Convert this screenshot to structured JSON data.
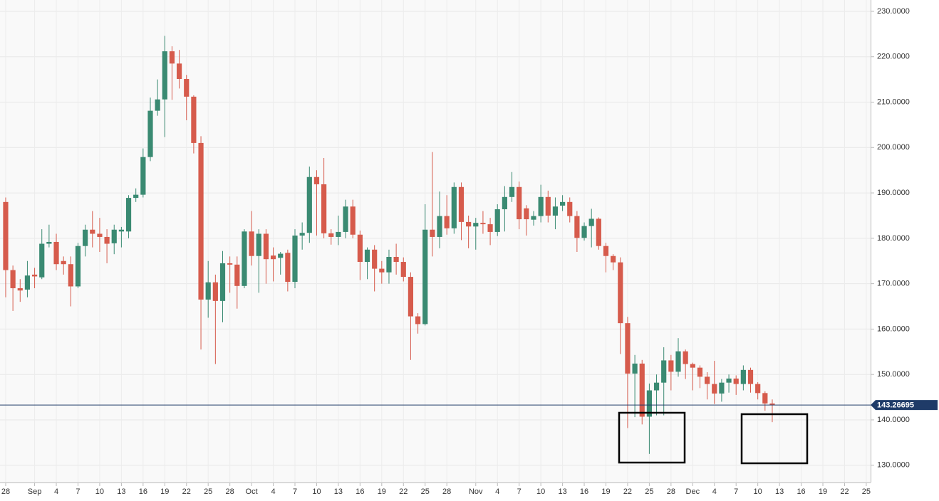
{
  "chart_data": {
    "type": "candlestick",
    "categories": [
      "28",
      null,
      null,
      null,
      "Sep",
      null,
      null,
      "4",
      null,
      null,
      "7",
      null,
      null,
      "10",
      null,
      null,
      "13",
      null,
      null,
      "16",
      null,
      null,
      "19",
      null,
      null,
      "22",
      null,
      null,
      "25",
      null,
      null,
      "28",
      null,
      null,
      "Oct",
      null,
      null,
      "4",
      null,
      null,
      "7",
      null,
      null,
      "10",
      null,
      null,
      "13",
      null,
      null,
      "16",
      null,
      null,
      "19",
      null,
      null,
      "22",
      null,
      null,
      "25",
      null,
      null,
      "28",
      null,
      null,
      null,
      "Nov",
      null,
      null,
      "4",
      null,
      null,
      "7",
      null,
      null,
      "10",
      null,
      null,
      "13",
      null,
      null,
      "16",
      null,
      null,
      "19",
      null,
      null,
      "22",
      null,
      null,
      "25",
      null,
      null,
      "28",
      null,
      null,
      "Dec",
      null,
      null,
      "4",
      null,
      null,
      "7",
      null,
      null,
      "10",
      null,
      null,
      "13",
      null,
      null,
      "16",
      null,
      null,
      "19",
      null,
      null,
      "22",
      null,
      null,
      "25"
    ],
    "open": [
      188,
      173,
      169,
      168.7,
      172,
      171.4,
      178.8,
      179.2,
      175,
      174.3,
      169.4,
      178.3,
      181.9,
      181,
      180.3,
      178.9,
      181.5,
      181.5,
      188.9,
      189.6,
      197.9,
      208.1,
      210.6,
      221.2,
      218.5,
      215.1,
      211.2,
      201,
      166.5,
      170.3,
      166.2,
      174.5,
      174.2,
      169.5,
      181.5,
      176.1,
      181,
      176.2,
      175.7,
      176.8,
      170.4,
      180.6,
      181.2,
      193.5,
      191.9,
      181.1,
      180.3,
      181.4,
      187,
      180.8,
      174.8,
      177.5,
      173.3,
      172.5,
      175.9,
      174.8,
      171.5,
      162.8,
      161.1,
      181.9,
      180.3,
      184.9,
      182.2,
      191.3,
      183.6,
      182.6,
      183.4,
      183.1,
      181.4,
      186.4,
      189.1,
      191.3,
      186.6,
      184.1,
      184.9,
      189.1,
      185,
      187.2,
      188,
      184.9,
      180.1,
      182.7,
      184.3,
      178.3,
      176.1,
      174.7,
      161.3,
      150.2,
      152.4,
      140.7,
      146.5,
      148.2,
      153.1,
      150.6,
      155.1,
      152.3,
      151.5,
      149.5,
      147.9,
      145.8,
      148.2,
      149.1,
      147.9,
      151,
      147.9,
      145.9,
      143.6,
      null,
      null,
      null,
      null,
      null,
      null,
      null,
      null,
      null,
      null,
      null,
      null,
      null
    ],
    "high": [
      189,
      174,
      171,
      175,
      173.5,
      182,
      183,
      181,
      176,
      176,
      179,
      183,
      186,
      184.5,
      182,
      183,
      182.5,
      189.5,
      191,
      199.8,
      211,
      215,
      224.6,
      222.3,
      221.5,
      216,
      211.5,
      202.5,
      175,
      172,
      177.2,
      176,
      176,
      182,
      186,
      182,
      182,
      178,
      177,
      177.5,
      182,
      183.5,
      195.8,
      195,
      197.7,
      182,
      185,
      188.5,
      188.5,
      181.7,
      178,
      178.5,
      175,
      177.5,
      178.8,
      175.8,
      172.5,
      163.5,
      187.5,
      199,
      190.3,
      189.5,
      192.3,
      192.3,
      185,
      184.5,
      186,
      184.5,
      187.5,
      191.5,
      194.6,
      192.5,
      187.3,
      186,
      191.8,
      190.5,
      189,
      189.5,
      189,
      186,
      183.5,
      186.5,
      184.6,
      179,
      176.5,
      175.8,
      162.7,
      154.3,
      153.2,
      148,
      150,
      156,
      154.3,
      158,
      155.5,
      152.6,
      152,
      150.5,
      153,
      149,
      150,
      149.8,
      152,
      151.5,
      148.3,
      146.3,
      144.5,
      null,
      null,
      null,
      null,
      null,
      null,
      null,
      null,
      null,
      null,
      null,
      null,
      null
    ],
    "low": [
      167,
      164,
      166,
      167,
      169,
      171,
      178,
      173,
      172,
      165,
      169,
      176,
      178,
      177,
      174.5,
      176.5,
      178,
      180,
      188,
      189,
      197,
      207,
      202.3,
      210.5,
      213,
      206,
      198.7,
      155.5,
      162.5,
      152.3,
      161.5,
      168,
      164.5,
      169,
      174,
      168,
      170,
      170.5,
      172,
      168.3,
      169,
      177.5,
      179,
      180.6,
      180,
      178.6,
      178.5,
      180,
      180,
      170.8,
      171,
      168.3,
      170,
      170,
      172,
      170.5,
      153.2,
      159,
      160.8,
      176,
      177.8,
      180.8,
      181,
      179.6,
      177.8,
      177.5,
      181,
      178.5,
      180.5,
      181.5,
      188,
      182,
      180.6,
      182.8,
      183.5,
      183.5,
      182,
      186,
      183.5,
      177,
      179.5,
      178,
      177.5,
      172.5,
      173,
      154.5,
      138.2,
      140.6,
      139,
      132.5,
      141,
      141,
      146.5,
      149.5,
      149,
      146.5,
      147,
      144.5,
      143.5,
      144,
      146,
      145.5,
      146.5,
      146,
      144.5,
      142,
      139.5,
      null,
      null,
      null,
      null,
      null,
      null,
      null,
      null,
      null,
      null,
      null,
      null,
      null
    ],
    "close": [
      173,
      169,
      168.5,
      171.8,
      171.6,
      178.8,
      179.2,
      174.3,
      174.3,
      169.4,
      178.3,
      181.9,
      181,
      180.3,
      178.8,
      181.9,
      181.9,
      188.9,
      189.6,
      197.9,
      208.1,
      210.6,
      221.2,
      218.5,
      215.1,
      211.2,
      201,
      166.5,
      170.3,
      166.2,
      174.5,
      174.2,
      169.5,
      181.5,
      176.1,
      181,
      175.4,
      175.4,
      176.6,
      170.4,
      180.6,
      181.2,
      193.5,
      191.9,
      181.1,
      180.3,
      181.4,
      187,
      180.8,
      174.8,
      177.5,
      173.3,
      172.5,
      175.9,
      174.8,
      171.5,
      162.8,
      161.1,
      181.9,
      180.3,
      184.9,
      182.2,
      191.3,
      183.6,
      182.6,
      183.4,
      183.1,
      181.4,
      186.4,
      189.1,
      191.3,
      184.2,
      184.2,
      184.9,
      189.1,
      185,
      187,
      188,
      184.9,
      180.1,
      182.7,
      184.3,
      178.3,
      176.1,
      174.7,
      161.3,
      150.2,
      152.4,
      140.7,
      146.5,
      148.2,
      153.1,
      150.6,
      155.1,
      152.3,
      151.5,
      149.5,
      147.9,
      145.8,
      148.2,
      149.1,
      147.9,
      151,
      147.9,
      145.9,
      143.6,
      143.27,
      null,
      null,
      null,
      null,
      null,
      null,
      null,
      null,
      null,
      null,
      null,
      null,
      null
    ],
    "up_color": "#3a8a72",
    "down_color": "#d65b4c",
    "ylim": [
      126.2,
      232.5
    ],
    "yticks": [
      {
        "value": 130,
        "label": "130.0000"
      },
      {
        "value": 140,
        "label": "140.0000"
      },
      {
        "value": 150,
        "label": "150.0000"
      },
      {
        "value": 160,
        "label": "160.0000"
      },
      {
        "value": 170,
        "label": "170.0000"
      },
      {
        "value": 180,
        "label": "180.0000"
      },
      {
        "value": 190,
        "label": "190.0000"
      },
      {
        "value": 200,
        "label": "200.0000"
      },
      {
        "value": 210,
        "label": "210.0000"
      },
      {
        "value": 220,
        "label": "220.0000"
      },
      {
        "value": 230,
        "label": "230.0000"
      }
    ],
    "grid": true,
    "last_price": {
      "value": 143.26695,
      "label": "143.26695"
    },
    "last_price_color": "#1f3b68"
  }
}
